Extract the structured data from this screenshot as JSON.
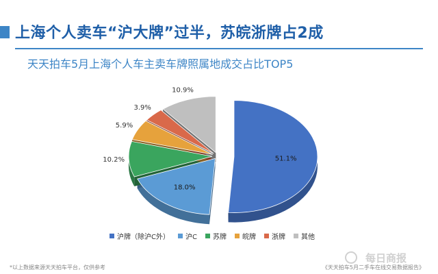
{
  "header": {
    "title": "上海个人卖车“沪大牌”过半，苏皖浙牌占2成",
    "subtitle": "天天拍车5月上海个人车主卖车牌照属地成交占比TOP5"
  },
  "chart_data": {
    "type": "pie",
    "title": "",
    "slices": [
      {
        "label": "沪牌（除沪C外）",
        "value": 51.1,
        "label_text": "51.1%",
        "color": "#4472c4"
      },
      {
        "label": "沪C",
        "value": 18.0,
        "label_text": "18.0%",
        "color": "#5b9bd5"
      },
      {
        "label": "苏牌",
        "value": 10.2,
        "label_text": "10.2%",
        "color": "#3aa55e"
      },
      {
        "label": "皖牌",
        "value": 5.9,
        "label_text": "5.9%",
        "color": "#e6a23c"
      },
      {
        "label": "浙牌",
        "value": 3.9,
        "label_text": "3.9%",
        "color": "#d9694a"
      },
      {
        "label": "其他",
        "value": 10.9,
        "label_text": "10.9%",
        "color": "#bfbfbf"
      }
    ],
    "legend_position": "bottom",
    "style": "3d-exploded"
  },
  "footer": {
    "note": "*以上数据来源天天拍车平台，仅供参考",
    "source": "《天天拍车5月二手车在线交易数据报告》",
    "watermark": "每日商报"
  }
}
